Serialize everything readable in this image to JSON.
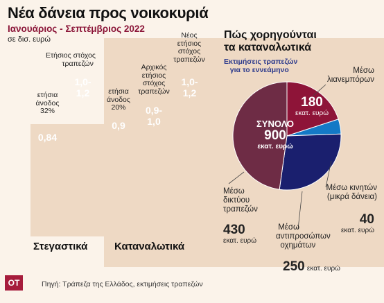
{
  "header": {
    "title": "Νέα δάνεια προς νοικοκυριά",
    "subtitle": "Ιανουάριος - Σεπτέμβριος 2022",
    "unit": "σε δισ. ευρώ"
  },
  "bars": {
    "housing_title": "Στεγαστικά",
    "consumer_title": "Καταναλωτικά",
    "items": [
      {
        "label": "ετήσια άνοδος 32%",
        "value_label": "0,84",
        "value": 0.84,
        "color": "#6d8c89"
      },
      {
        "label": "Ετήσιος στόχος τραπεζών",
        "value_label": "1,0-1,2",
        "value": 1.2,
        "color": "#8e1438"
      },
      {
        "label": "ετήσια άνοδος 20%",
        "value_label": "0,9",
        "value": 0.9,
        "color": "#6d8c89"
      },
      {
        "label": "Αρχικός ετήσιος στόχος τραπεζών",
        "value_label": "0,9-1,0",
        "value": 1.0,
        "color": "#1c5c78"
      },
      {
        "label": "Νέος ετήσιος στόχος τραπεζών",
        "value_label": "1,0-1,2",
        "value": 1.2,
        "color": "#8e1438"
      }
    ]
  },
  "pie": {
    "title_line1": "Πώς χορηγούνται",
    "title_line2": "τα καταναλωτικά",
    "subtitle_line1": "Εκτιμήσεις τραπεζών",
    "subtitle_line2": "για το εννεάμηνο",
    "total_label": "ΣΥΝΟΛΟ",
    "total_value": "900",
    "total_unit": "εκατ. ευρώ",
    "slices": [
      {
        "name_line1": "Μέσω",
        "name_line2": "λιανεμπόρων",
        "name_line3": "",
        "value": 180,
        "value_text": "180",
        "unit": "εκατ. ευρώ",
        "color": "#8e1438"
      },
      {
        "name_line1": "Μέσω κινητών",
        "name_line2": "(μικρά δάνεια)",
        "name_line3": "",
        "value": 40,
        "value_text": "40",
        "unit": "εκατ. ευρώ",
        "color": "#1479c6"
      },
      {
        "name_line1": "Μέσω",
        "name_line2": "αντιπροσώπων",
        "name_line3": "οχημάτων",
        "value": 250,
        "value_text": "250",
        "unit": "εκατ. ευρώ",
        "color": "#1a1f6e"
      },
      {
        "name_line1": "Μέσω",
        "name_line2": "δικτύου",
        "name_line3": "τραπεζών",
        "value": 430,
        "value_text": "430",
        "unit": "εκατ. ευρώ",
        "color": "#6e2c45"
      }
    ]
  },
  "footer": {
    "logo": "ΟΤ",
    "source": "Πηγή: Τράπεζα της Ελλάδος, εκτιμήσεις τραπεζών"
  },
  "chart_data": [
    {
      "type": "bar",
      "categories": [
        "ετήσια άνοδος 32%",
        "Ετήσιος στόχος τραπεζών",
        "ετήσια άνοδος 20%",
        "Αρχικός ετήσιος στόχος τραπεζών",
        "Νέος ετήσιος στόχος τραπεζών"
      ],
      "values": [
        0.84,
        1.2,
        0.9,
        1.0,
        1.2
      ],
      "title": "Νέα δάνεια προς νοικοκυριά",
      "subtitle": "Ιανουάριος - Σεπτέμβριος 2022",
      "ylabel": "σε δισ. ευρώ"
    },
    {
      "type": "pie",
      "title": "Πώς χορηγούνται τα καταναλωτικά",
      "categories": [
        "Μέσω λιανεμπόρων",
        "Μέσω κινητών (μικρά δάνεια)",
        "Μέσω αντιπροσώπων οχημάτων",
        "Μέσω δικτύου τραπεζών"
      ],
      "values": [
        180,
        40,
        250,
        430
      ],
      "total": 900
    }
  ]
}
